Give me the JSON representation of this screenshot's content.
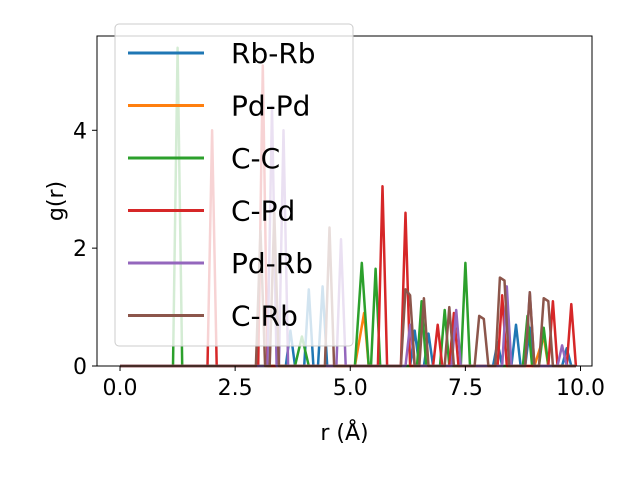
{
  "chart_data": {
    "type": "line",
    "xlabel": "r (Å)",
    "ylabel": "g(r)",
    "xlim": [
      -0.5,
      10.25
    ],
    "ylim": [
      0,
      5.6
    ],
    "xticks": [
      0.0,
      2.5,
      5.0,
      7.5,
      10.0
    ],
    "xtick_labels": [
      "0.0",
      "2.5",
      "5.0",
      "7.5",
      "10.0"
    ],
    "yticks": [
      0,
      2,
      4
    ],
    "ytick_labels": [
      "0",
      "2",
      "4"
    ],
    "legend_position": "upper-left",
    "grid": false,
    "series": [
      {
        "name": "Rb-Rb",
        "color": "#1f77b4",
        "points": [
          [
            0,
            0
          ],
          [
            3.6,
            0
          ],
          [
            3.7,
            0.6
          ],
          [
            3.8,
            0
          ],
          [
            4.0,
            0
          ],
          [
            4.1,
            1.3
          ],
          [
            4.2,
            0
          ],
          [
            4.3,
            0
          ],
          [
            4.4,
            1.35
          ],
          [
            4.5,
            0
          ],
          [
            6.3,
            0
          ],
          [
            6.4,
            0.6
          ],
          [
            6.5,
            0
          ],
          [
            6.6,
            0
          ],
          [
            6.7,
            0.55
          ],
          [
            6.8,
            0
          ],
          [
            8.1,
            0
          ],
          [
            8.2,
            0.4
          ],
          [
            8.3,
            0
          ],
          [
            8.5,
            0
          ],
          [
            8.6,
            0.7
          ],
          [
            8.7,
            0
          ],
          [
            8.8,
            0
          ],
          [
            8.9,
            0.65
          ],
          [
            9.0,
            0
          ],
          [
            9.6,
            0
          ],
          [
            9.7,
            0.3
          ],
          [
            9.8,
            0
          ],
          [
            9.9,
            0
          ]
        ]
      },
      {
        "name": "Pd-Pd",
        "color": "#ff7f0e",
        "points": [
          [
            0,
            0
          ],
          [
            5.1,
            0
          ],
          [
            5.3,
            0.9
          ],
          [
            5.4,
            0
          ],
          [
            9.0,
            0
          ],
          [
            9.2,
            0.5
          ],
          [
            9.3,
            0
          ],
          [
            9.9,
            0
          ]
        ]
      },
      {
        "name": "C-C",
        "color": "#2ca02c",
        "points": [
          [
            0,
            0
          ],
          [
            1.15,
            0
          ],
          [
            1.25,
            5.4
          ],
          [
            1.35,
            0
          ],
          [
            3.8,
            0
          ],
          [
            3.95,
            0.5
          ],
          [
            4.1,
            0
          ],
          [
            5.1,
            0
          ],
          [
            5.25,
            1.75
          ],
          [
            5.4,
            0
          ],
          [
            5.45,
            0
          ],
          [
            5.55,
            1.65
          ],
          [
            5.65,
            0
          ],
          [
            6.45,
            0
          ],
          [
            6.55,
            1.1
          ],
          [
            6.65,
            0
          ],
          [
            6.95,
            0
          ],
          [
            7.05,
            0.95
          ],
          [
            7.15,
            0
          ],
          [
            7.4,
            0
          ],
          [
            7.5,
            1.75
          ],
          [
            7.6,
            0
          ],
          [
            8.75,
            0
          ],
          [
            8.85,
            0.85
          ],
          [
            8.95,
            0
          ],
          [
            9.1,
            0
          ],
          [
            9.2,
            0.65
          ],
          [
            9.3,
            0
          ],
          [
            9.9,
            0
          ]
        ]
      },
      {
        "name": "C-Pd",
        "color": "#d62728",
        "points": [
          [
            0,
            0
          ],
          [
            1.9,
            0
          ],
          [
            2.0,
            4.0
          ],
          [
            2.1,
            0
          ],
          [
            3.0,
            0
          ],
          [
            3.1,
            5.1
          ],
          [
            3.2,
            0
          ],
          [
            5.6,
            0
          ],
          [
            5.7,
            3.05
          ],
          [
            5.8,
            0
          ],
          [
            6.1,
            0
          ],
          [
            6.2,
            2.6
          ],
          [
            6.3,
            0
          ],
          [
            6.8,
            0
          ],
          [
            6.9,
            0.7
          ],
          [
            7.0,
            0
          ],
          [
            7.15,
            0
          ],
          [
            7.25,
            0.9
          ],
          [
            7.35,
            0
          ],
          [
            8.2,
            0
          ],
          [
            8.3,
            1.2
          ],
          [
            8.4,
            0
          ],
          [
            9.3,
            0
          ],
          [
            9.4,
            1.1
          ],
          [
            9.5,
            0
          ],
          [
            9.7,
            0
          ],
          [
            9.8,
            1.05
          ],
          [
            9.9,
            0
          ]
        ]
      },
      {
        "name": "Pd-Rb",
        "color": "#9467bd",
        "points": [
          [
            0,
            0
          ],
          [
            3.2,
            0
          ],
          [
            3.3,
            4.4
          ],
          [
            3.4,
            0
          ],
          [
            3.45,
            0
          ],
          [
            3.55,
            4.0
          ],
          [
            3.65,
            0
          ],
          [
            4.7,
            0
          ],
          [
            4.8,
            2.15
          ],
          [
            4.9,
            0
          ],
          [
            6.2,
            0
          ],
          [
            6.3,
            0.7
          ],
          [
            6.4,
            0
          ],
          [
            7.2,
            0
          ],
          [
            7.3,
            0.95
          ],
          [
            7.4,
            0
          ],
          [
            8.3,
            0
          ],
          [
            8.4,
            1.35
          ],
          [
            8.5,
            0
          ],
          [
            8.8,
            0
          ],
          [
            8.9,
            1.25
          ],
          [
            9.0,
            0
          ],
          [
            9.5,
            0
          ],
          [
            9.6,
            0.35
          ],
          [
            9.7,
            0
          ],
          [
            9.9,
            0
          ]
        ]
      },
      {
        "name": "C-Rb",
        "color": "#8c564b",
        "points": [
          [
            0,
            0
          ],
          [
            2.95,
            0
          ],
          [
            3.05,
            2.3
          ],
          [
            3.15,
            0
          ],
          [
            3.25,
            0
          ],
          [
            3.35,
            2.6
          ],
          [
            3.45,
            0
          ],
          [
            4.45,
            0
          ],
          [
            4.55,
            2.35
          ],
          [
            4.65,
            0
          ],
          [
            6.1,
            0
          ],
          [
            6.2,
            1.3
          ],
          [
            6.3,
            1.2
          ],
          [
            6.4,
            0
          ],
          [
            6.5,
            0
          ],
          [
            6.6,
            1.15
          ],
          [
            6.7,
            0
          ],
          [
            7.05,
            0
          ],
          [
            7.15,
            1.0
          ],
          [
            7.25,
            0
          ],
          [
            7.7,
            0
          ],
          [
            7.8,
            0.85
          ],
          [
            7.9,
            0.8
          ],
          [
            8.0,
            0
          ],
          [
            8.15,
            0
          ],
          [
            8.25,
            1.5
          ],
          [
            8.35,
            1.45
          ],
          [
            8.45,
            0
          ],
          [
            8.8,
            0
          ],
          [
            8.9,
            1.25
          ],
          [
            9.0,
            0
          ],
          [
            9.1,
            0
          ],
          [
            9.2,
            1.15
          ],
          [
            9.3,
            1.1
          ],
          [
            9.4,
            0
          ],
          [
            9.9,
            0
          ]
        ]
      }
    ]
  }
}
